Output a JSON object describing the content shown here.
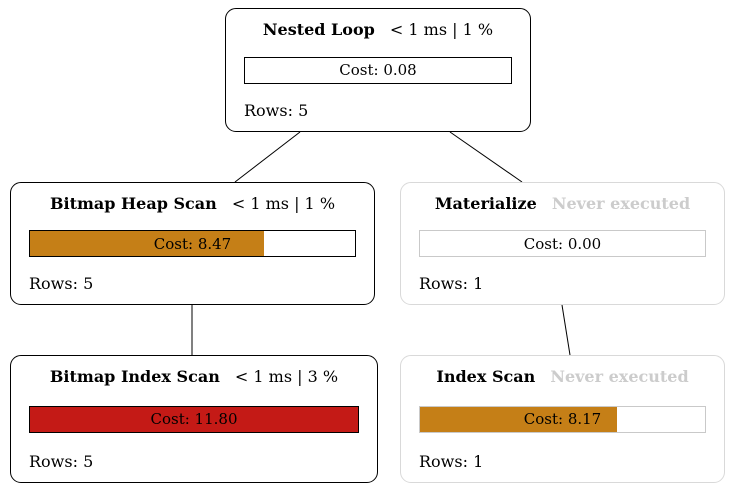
{
  "diagram": {
    "type": "query-plan-tree",
    "colors": {
      "bar_orange": "#c57f17",
      "bar_red": "#c41a16",
      "bar_empty": "#ffffff",
      "inactive_text": "#cccccc",
      "inactive_border": "#d9d9d9",
      "active_border": "#000000"
    },
    "nodes": [
      {
        "id": "nested-loop",
        "title": "Nested Loop",
        "meta": "< 1 ms | 1 %",
        "cost": "Cost: 0.08",
        "rows": "Rows: 5",
        "never_executed": false,
        "fill": {
          "pct": 0,
          "color": "#ffffff"
        }
      },
      {
        "id": "bitmap-heap-scan",
        "title": "Bitmap Heap Scan",
        "meta": "< 1 ms | 1 %",
        "cost": "Cost: 8.47",
        "rows": "Rows: 5",
        "never_executed": false,
        "fill": {
          "pct": 72,
          "color": "#c57f17"
        }
      },
      {
        "id": "materialize",
        "title": "Materialize",
        "meta": "Never executed",
        "cost": "Cost: 0.00",
        "rows": "Rows: 1",
        "never_executed": true,
        "fill": {
          "pct": 0,
          "color": "#ffffff"
        }
      },
      {
        "id": "bitmap-index-scan",
        "title": "Bitmap Index Scan",
        "meta": "< 1 ms | 3 %",
        "cost": "Cost: 11.80",
        "rows": "Rows: 5",
        "never_executed": false,
        "fill": {
          "pct": 100,
          "color": "#c41a16"
        }
      },
      {
        "id": "index-scan",
        "title": "Index Scan",
        "meta": "Never executed",
        "cost": "Cost: 8.17",
        "rows": "Rows: 1",
        "never_executed": true,
        "fill": {
          "pct": 69,
          "color": "#c57f17"
        }
      }
    ],
    "edges": [
      {
        "from": "nested-loop",
        "to": "bitmap-heap-scan"
      },
      {
        "from": "nested-loop",
        "to": "materialize"
      },
      {
        "from": "bitmap-heap-scan",
        "to": "bitmap-index-scan"
      },
      {
        "from": "materialize",
        "to": "index-scan"
      }
    ]
  }
}
